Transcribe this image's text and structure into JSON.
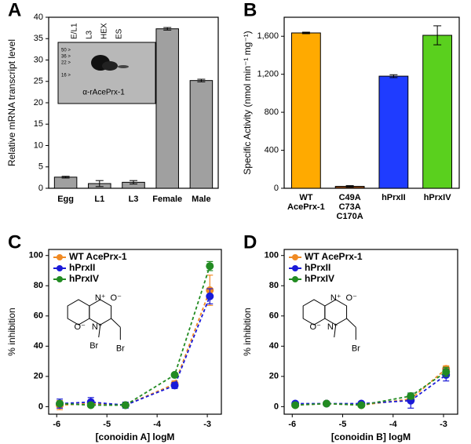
{
  "chart_data": [
    {
      "panel": "A",
      "type": "bar",
      "ylabel": "Relative mRNA transcript level",
      "categories": [
        "Egg",
        "L1",
        "L3",
        "Female",
        "Male"
      ],
      "values": [
        2.6,
        1.1,
        1.4,
        37.3,
        25.2
      ],
      "errors": [
        0.2,
        0.7,
        0.4,
        0.3,
        0.3
      ],
      "color": "#a0a0a0",
      "ylim": [
        0,
        40
      ],
      "yticks": [
        0,
        5,
        10,
        15,
        20,
        25,
        30,
        35,
        40
      ],
      "inset": {
        "lanes": [
          "E/L1",
          "L3",
          "HEX",
          "ES"
        ],
        "markers": [
          "50 >",
          "36 >",
          "22 >",
          "16 >"
        ],
        "caption": "α-rAcePrx-1"
      }
    },
    {
      "panel": "B",
      "type": "bar",
      "ylabel": "Specific Activity (nmol min⁻¹ mg⁻¹)",
      "categories": [
        [
          "WT",
          "AcePrx-1"
        ],
        [
          "C49A",
          "C73A",
          "C170A"
        ],
        [
          "hPrxII"
        ],
        [
          "hPrxIV"
        ]
      ],
      "values": [
        1635,
        20,
        1180,
        1610
      ],
      "errors": [
        8,
        8,
        15,
        100
      ],
      "colors": [
        "#ffaa00",
        "#8b4513",
        "#1f3cff",
        "#5ad01e"
      ],
      "ylim": [
        0,
        1800
      ],
      "yticks": [
        0,
        400,
        800,
        {
          "value": 1200,
          "label": "1,200"
        },
        {
          "value": 1600,
          "label": "1,600"
        }
      ]
    },
    {
      "panel": "C",
      "type": "line",
      "xlabel": "[conoidin A] logM",
      "ylabel": "% inhibition",
      "x": [
        -5.94,
        -5.32,
        -4.63,
        -3.65,
        -2.95
      ],
      "series": [
        {
          "name": "WT AcePrx-1",
          "color": "#f08a24",
          "values": [
            1,
            2,
            1,
            15,
            77
          ],
          "errors": [
            3,
            2,
            1,
            2,
            10
          ]
        },
        {
          "name": "hPrxII",
          "color": "#1a1ad8",
          "values": [
            2,
            3,
            1,
            14,
            73
          ],
          "errors": [
            3,
            3,
            2,
            2,
            5
          ]
        },
        {
          "name": "hPrxIV",
          "color": "#228b22",
          "values": [
            2,
            1,
            1,
            21,
            93
          ],
          "errors": [
            1,
            1,
            1,
            1,
            3
          ]
        }
      ],
      "xlim": [
        -6.16,
        -2.72
      ],
      "xticks": [
        -6,
        -5,
        -4,
        -3
      ],
      "ylim": [
        -5,
        104
      ],
      "yticks": [
        0,
        20,
        40,
        60,
        80,
        100
      ],
      "legend": "upper left",
      "structure_labels": [
        "N⁺",
        "O⁻",
        "N⁺",
        "O⁻",
        "Br",
        "Br"
      ]
    },
    {
      "panel": "D",
      "type": "line",
      "xlabel": "[conoidin B] logM",
      "ylabel": "% inhibition",
      "x": [
        -5.94,
        -5.32,
        -4.63,
        -3.65,
        -2.95
      ],
      "series": [
        {
          "name": "WT AcePrx-1",
          "color": "#f08a24",
          "values": [
            1,
            2,
            1,
            5,
            25
          ],
          "errors": [
            1,
            1,
            1,
            2,
            2
          ]
        },
        {
          "name": "hPrxII",
          "color": "#1a1ad8",
          "values": [
            2,
            2,
            2,
            4,
            21
          ],
          "errors": [
            1,
            1,
            1,
            5,
            4
          ]
        },
        {
          "name": "hPrxIV",
          "color": "#228b22",
          "values": [
            1,
            2,
            1,
            7,
            23
          ],
          "errors": [
            1,
            1,
            1,
            2,
            3
          ]
        }
      ],
      "xlim": [
        -6.16,
        -2.72
      ],
      "xticks": [
        -6,
        -5,
        -4,
        -3
      ],
      "ylim": [
        -5,
        104
      ],
      "yticks": [
        0,
        20,
        40,
        60,
        80,
        100
      ],
      "legend": "upper left",
      "structure_labels": [
        "N⁺",
        "O⁻",
        "N⁺",
        "O⁻",
        "Br"
      ]
    }
  ]
}
